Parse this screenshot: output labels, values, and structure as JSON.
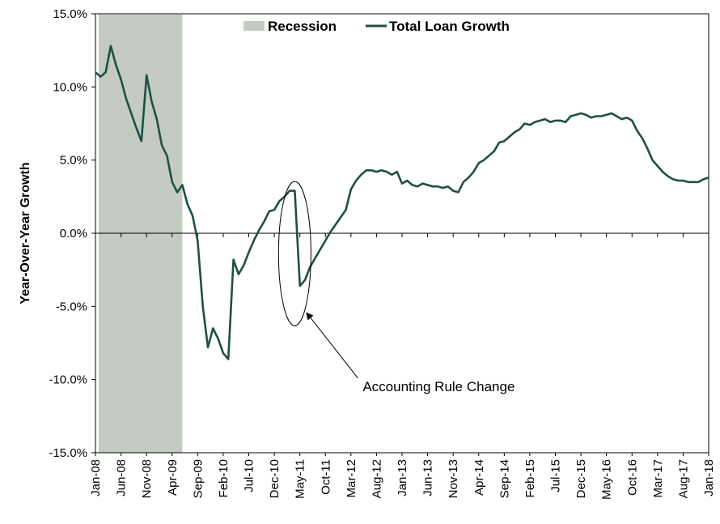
{
  "chart_data": {
    "type": "line",
    "ylabel": "Year-Over-Year Growth",
    "ylim": [
      -15,
      15
    ],
    "y_ticks": [
      -15,
      -10,
      -5,
      0,
      5,
      10,
      15
    ],
    "y_tick_labels": [
      "-15.0%",
      "-10.0%",
      "-5.0%",
      "0.0%",
      "5.0%",
      "10.0%",
      "15.0%"
    ],
    "x_range": [
      "2008-01",
      "2018-01"
    ],
    "x_ticks": [
      {
        "date": "2008-01",
        "label": "Jan-08"
      },
      {
        "date": "2008-06",
        "label": "Jun-08"
      },
      {
        "date": "2008-11",
        "label": "Nov-08"
      },
      {
        "date": "2009-04",
        "label": "Apr-09"
      },
      {
        "date": "2009-09",
        "label": "Sep-09"
      },
      {
        "date": "2010-02",
        "label": "Feb-10"
      },
      {
        "date": "2010-07",
        "label": "Jul-10"
      },
      {
        "date": "2010-12",
        "label": "Dec-10"
      },
      {
        "date": "2011-05",
        "label": "May-11"
      },
      {
        "date": "2011-10",
        "label": "Oct-11"
      },
      {
        "date": "2012-03",
        "label": "Mar-12"
      },
      {
        "date": "2012-08",
        "label": "Aug-12"
      },
      {
        "date": "2013-01",
        "label": "Jan-13"
      },
      {
        "date": "2013-06",
        "label": "Jun-13"
      },
      {
        "date": "2013-11",
        "label": "Nov-13"
      },
      {
        "date": "2014-04",
        "label": "Apr-14"
      },
      {
        "date": "2014-09",
        "label": "Sep-14"
      },
      {
        "date": "2015-02",
        "label": "Feb-15"
      },
      {
        "date": "2015-07",
        "label": "Jul-15"
      },
      {
        "date": "2015-12",
        "label": "Dec-15"
      },
      {
        "date": "2016-05",
        "label": "May-16"
      },
      {
        "date": "2016-10",
        "label": "Oct-16"
      },
      {
        "date": "2017-03",
        "label": "Mar-17"
      },
      {
        "date": "2017-08",
        "label": "Aug-17"
      },
      {
        "date": "2018-01",
        "label": "Jan-18"
      }
    ],
    "recession": {
      "name": "Recession",
      "start": "2008-01",
      "end": "2009-06",
      "color": "#c3cbc2"
    },
    "series": [
      {
        "name": "Total Loan Growth",
        "color": "#1f4f45",
        "points": [
          [
            "2008-01",
            11.0
          ],
          [
            "2008-02",
            10.7
          ],
          [
            "2008-03",
            11.0
          ],
          [
            "2008-04",
            12.8
          ],
          [
            "2008-05",
            11.5
          ],
          [
            "2008-06",
            10.5
          ],
          [
            "2008-07",
            9.2
          ],
          [
            "2008-08",
            8.2
          ],
          [
            "2008-09",
            7.2
          ],
          [
            "2008-10",
            6.3
          ],
          [
            "2008-11",
            10.8
          ],
          [
            "2008-12",
            9.0
          ],
          [
            "2009-01",
            7.8
          ],
          [
            "2009-02",
            6.0
          ],
          [
            "2009-03",
            5.3
          ],
          [
            "2009-04",
            3.5
          ],
          [
            "2009-05",
            2.8
          ],
          [
            "2009-06",
            3.3
          ],
          [
            "2009-07",
            2.0
          ],
          [
            "2009-08",
            1.2
          ],
          [
            "2009-09",
            -0.5
          ],
          [
            "2009-10",
            -5.0
          ],
          [
            "2009-11",
            -7.8
          ],
          [
            "2009-12",
            -6.5
          ],
          [
            "2010-01",
            -7.2
          ],
          [
            "2010-02",
            -8.2
          ],
          [
            "2010-03",
            -8.6
          ],
          [
            "2010-04",
            -1.8
          ],
          [
            "2010-05",
            -2.8
          ],
          [
            "2010-06",
            -2.2
          ],
          [
            "2010-07",
            -1.3
          ],
          [
            "2010-08",
            -0.5
          ],
          [
            "2010-09",
            0.2
          ],
          [
            "2010-10",
            0.8
          ],
          [
            "2010-11",
            1.5
          ],
          [
            "2010-12",
            1.6
          ],
          [
            "2011-01",
            2.2
          ],
          [
            "2011-02",
            2.5
          ],
          [
            "2011-03",
            2.9
          ],
          [
            "2011-04",
            2.9
          ],
          [
            "2011-05",
            -3.6
          ],
          [
            "2011-06",
            -3.2
          ],
          [
            "2011-07",
            -2.3
          ],
          [
            "2011-08",
            -1.7
          ],
          [
            "2011-09",
            -1.1
          ],
          [
            "2011-10",
            -0.5
          ],
          [
            "2011-11",
            0.1
          ],
          [
            "2011-12",
            0.6
          ],
          [
            "2012-01",
            1.1
          ],
          [
            "2012-02",
            1.6
          ],
          [
            "2012-03",
            3.0
          ],
          [
            "2012-04",
            3.6
          ],
          [
            "2012-05",
            4.0
          ],
          [
            "2012-06",
            4.3
          ],
          [
            "2012-07",
            4.3
          ],
          [
            "2012-08",
            4.2
          ],
          [
            "2012-09",
            4.3
          ],
          [
            "2012-10",
            4.2
          ],
          [
            "2012-11",
            4.0
          ],
          [
            "2012-12",
            4.2
          ],
          [
            "2013-01",
            3.4
          ],
          [
            "2013-02",
            3.6
          ],
          [
            "2013-03",
            3.3
          ],
          [
            "2013-04",
            3.2
          ],
          [
            "2013-05",
            3.4
          ],
          [
            "2013-06",
            3.3
          ],
          [
            "2013-07",
            3.2
          ],
          [
            "2013-08",
            3.2
          ],
          [
            "2013-09",
            3.1
          ],
          [
            "2013-10",
            3.2
          ],
          [
            "2013-11",
            2.9
          ],
          [
            "2013-12",
            2.8
          ],
          [
            "2014-01",
            3.5
          ],
          [
            "2014-02",
            3.8
          ],
          [
            "2014-03",
            4.2
          ],
          [
            "2014-04",
            4.8
          ],
          [
            "2014-05",
            5.0
          ],
          [
            "2014-06",
            5.3
          ],
          [
            "2014-07",
            5.6
          ],
          [
            "2014-08",
            6.2
          ],
          [
            "2014-09",
            6.3
          ],
          [
            "2014-10",
            6.6
          ],
          [
            "2014-11",
            6.9
          ],
          [
            "2014-12",
            7.1
          ],
          [
            "2015-01",
            7.5
          ],
          [
            "2015-02",
            7.4
          ],
          [
            "2015-03",
            7.6
          ],
          [
            "2015-04",
            7.7
          ],
          [
            "2015-05",
            7.8
          ],
          [
            "2015-06",
            7.6
          ],
          [
            "2015-07",
            7.7
          ],
          [
            "2015-08",
            7.7
          ],
          [
            "2015-09",
            7.6
          ],
          [
            "2015-10",
            8.0
          ],
          [
            "2015-11",
            8.1
          ],
          [
            "2015-12",
            8.2
          ],
          [
            "2016-01",
            8.1
          ],
          [
            "2016-02",
            7.9
          ],
          [
            "2016-03",
            8.0
          ],
          [
            "2016-04",
            8.0
          ],
          [
            "2016-05",
            8.1
          ],
          [
            "2016-06",
            8.2
          ],
          [
            "2016-07",
            8.0
          ],
          [
            "2016-08",
            7.8
          ],
          [
            "2016-09",
            7.9
          ],
          [
            "2016-10",
            7.7
          ],
          [
            "2016-11",
            7.0
          ],
          [
            "2016-12",
            6.5
          ],
          [
            "2017-01",
            5.8
          ],
          [
            "2017-02",
            5.0
          ],
          [
            "2017-03",
            4.6
          ],
          [
            "2017-04",
            4.2
          ],
          [
            "2017-05",
            3.9
          ],
          [
            "2017-06",
            3.7
          ],
          [
            "2017-07",
            3.6
          ],
          [
            "2017-08",
            3.6
          ],
          [
            "2017-09",
            3.5
          ],
          [
            "2017-10",
            3.5
          ],
          [
            "2017-11",
            3.5
          ],
          [
            "2017-12",
            3.7
          ],
          [
            "2018-01",
            3.8
          ]
        ]
      }
    ],
    "annotations": [
      {
        "text": "Accounting Rule Change",
        "target": "2011-04",
        "target_value": -1.5
      }
    ],
    "legend": {
      "placement": "top-center",
      "entries": [
        "Recession",
        "Total Loan Growth"
      ]
    },
    "grid": false
  }
}
